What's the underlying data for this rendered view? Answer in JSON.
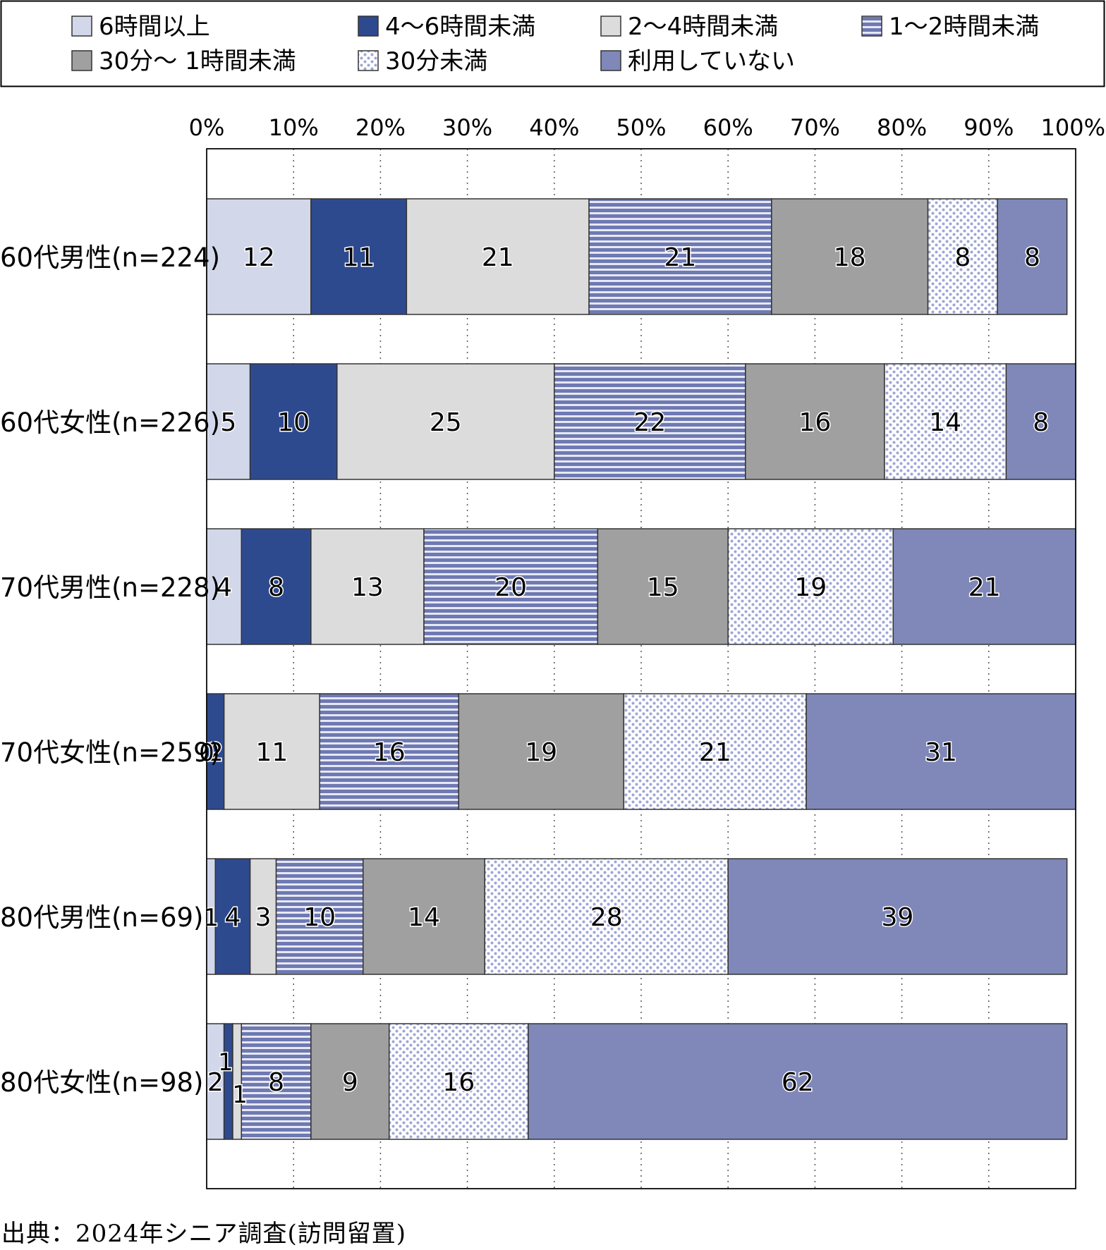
{
  "chart_data": {
    "type": "bar",
    "orientation": "horizontal",
    "stacked": true,
    "categories": [
      "60代男性(n=224)",
      "60代女性(n=226)",
      "70代男性(n=228)",
      "70代女性(n=259)",
      "80代男性(n=69)",
      "80代女性(n=98)"
    ],
    "series": [
      {
        "name": "6時間以上",
        "color": "#d3d7ea",
        "pattern": "solid",
        "values": [
          12,
          5,
          4,
          0,
          1,
          2
        ],
        "labels": [
          "12",
          "5",
          "4",
          "0",
          "1",
          "2"
        ]
      },
      {
        "name": "4～6時間未満",
        "color": "#2e4a8f",
        "pattern": "solid",
        "values": [
          11,
          10,
          8,
          2,
          4,
          1
        ],
        "labels": [
          "11",
          "10",
          "8",
          "2",
          "4",
          "1"
        ]
      },
      {
        "name": "2～4時間未満",
        "color": "#dcdcdc",
        "pattern": "solid",
        "values": [
          21,
          25,
          13,
          11,
          3,
          1
        ],
        "labels": [
          "21",
          "25",
          "13",
          "11",
          "3",
          "1"
        ]
      },
      {
        "name": "1～2時間未満",
        "color": "#7f88bd",
        "pattern": "horizontal-stripes",
        "values": [
          21,
          22,
          20,
          16,
          10,
          8
        ],
        "labels": [
          "21",
          "22",
          "20",
          "16",
          "10",
          "8"
        ]
      },
      {
        "name": "30分～ 1時間未満",
        "color": "#a0a0a0",
        "pattern": "solid",
        "values": [
          18,
          16,
          15,
          19,
          14,
          9
        ],
        "labels": [
          "18",
          "16",
          "15",
          "19",
          "14",
          "9"
        ]
      },
      {
        "name": "30分未満",
        "color": "#9aa2d2",
        "pattern": "dots",
        "values": [
          8,
          14,
          19,
          21,
          28,
          16
        ],
        "labels": [
          "8",
          "14",
          "19",
          "21",
          "28",
          "16"
        ]
      },
      {
        "name": "利用していない",
        "color": "#7f88b8",
        "pattern": "solid",
        "values": [
          8,
          8,
          21,
          31,
          39,
          62
        ],
        "labels": [
          "8",
          "8",
          "21",
          "31",
          "39",
          "62"
        ]
      }
    ],
    "x_ticks": [
      "0%",
      "10%",
      "20%",
      "30%",
      "40%",
      "50%",
      "60%",
      "70%",
      "80%",
      "90%",
      "100%"
    ],
    "xlim": [
      0,
      100
    ],
    "grid": "vertical dotted",
    "legend_position": "top"
  },
  "source_note": "出典：2024年シニア調査(訪問留置)"
}
